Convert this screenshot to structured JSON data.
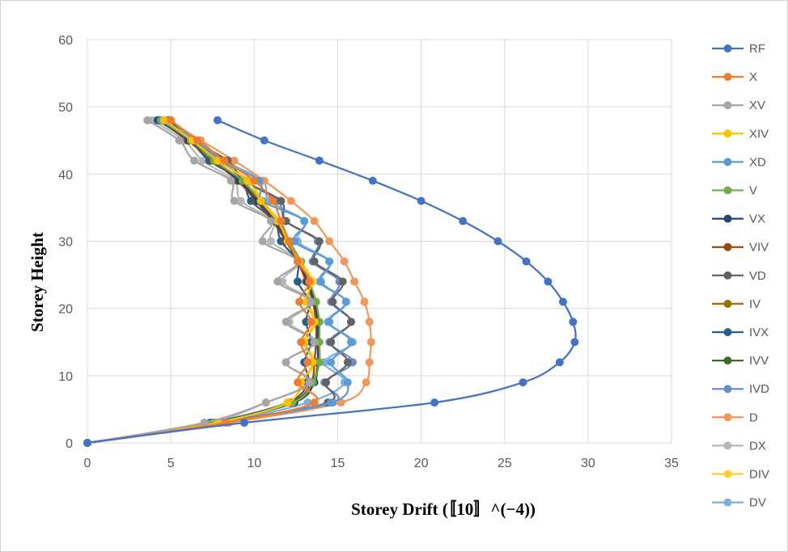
{
  "chart_data": {
    "type": "line",
    "title": "",
    "xlabel": "Storey Drift (〚10〛^(−4))",
    "ylabel": "Storey Height",
    "xlim": [
      0,
      35
    ],
    "ylim": [
      0,
      60
    ],
    "x_ticks": [
      "0",
      "5",
      "10",
      "15",
      "20",
      "25",
      "30",
      "35"
    ],
    "y_ticks": [
      "0",
      "10",
      "20",
      "30",
      "40",
      "50",
      "60"
    ],
    "grid": true,
    "legend_position": "right",
    "series": [
      {
        "name": "RF",
        "color": "#4472C4",
        "points": [
          [
            0,
            0
          ],
          [
            9.4,
            3
          ],
          [
            20.8,
            6
          ],
          [
            26.1,
            9
          ],
          [
            28.3,
            12
          ],
          [
            29.2,
            15
          ],
          [
            29.1,
            18
          ],
          [
            28.5,
            21
          ],
          [
            27.6,
            24
          ],
          [
            26.3,
            27
          ],
          [
            24.6,
            30
          ],
          [
            22.5,
            33
          ],
          [
            20.0,
            36
          ],
          [
            17.1,
            39
          ],
          [
            13.9,
            42
          ],
          [
            10.6,
            45
          ],
          [
            7.8,
            48
          ]
        ]
      },
      {
        "name": "X",
        "color": "#ED7D31",
        "points": [
          [
            0,
            0
          ],
          [
            8.3,
            3
          ],
          [
            13.6,
            6
          ],
          [
            12.6,
            9
          ],
          [
            13.2,
            12
          ],
          [
            12.8,
            15
          ],
          [
            13.4,
            18
          ],
          [
            12.7,
            21
          ],
          [
            13.3,
            24
          ],
          [
            12.6,
            27
          ],
          [
            12.1,
            30
          ],
          [
            11.6,
            33
          ],
          [
            11.1,
            36
          ],
          [
            10.0,
            39
          ],
          [
            8.2,
            42
          ],
          [
            6.6,
            45
          ],
          [
            5.0,
            48
          ]
        ]
      },
      {
        "name": "XV",
        "color": "#A5A5A5",
        "points": [
          [
            0,
            0
          ],
          [
            7.0,
            3
          ],
          [
            10.7,
            6
          ],
          [
            13.3,
            9
          ],
          [
            11.9,
            12
          ],
          [
            13.6,
            15
          ],
          [
            11.9,
            18
          ],
          [
            13.4,
            21
          ],
          [
            11.4,
            24
          ],
          [
            12.6,
            27
          ],
          [
            10.5,
            30
          ],
          [
            11.0,
            33
          ],
          [
            8.8,
            36
          ],
          [
            8.6,
            39
          ],
          [
            6.4,
            42
          ],
          [
            5.5,
            45
          ],
          [
            3.6,
            48
          ]
        ]
      },
      {
        "name": "XIV",
        "color": "#FFC000",
        "points": [
          [
            0,
            0
          ],
          [
            7.8,
            3
          ],
          [
            12.0,
            6
          ],
          [
            12.8,
            9
          ],
          [
            13.5,
            12
          ],
          [
            13.0,
            15
          ],
          [
            13.6,
            18
          ],
          [
            13.1,
            21
          ],
          [
            13.4,
            24
          ],
          [
            12.7,
            27
          ],
          [
            12.0,
            30
          ],
          [
            11.4,
            33
          ],
          [
            10.4,
            36
          ],
          [
            9.6,
            39
          ],
          [
            7.8,
            42
          ],
          [
            6.3,
            45
          ],
          [
            4.6,
            48
          ]
        ]
      },
      {
        "name": "XD",
        "color": "#5B9BD5",
        "points": [
          [
            0,
            0
          ],
          [
            8.0,
            3
          ],
          [
            14.6,
            6
          ],
          [
            15.6,
            9
          ],
          [
            14.6,
            12
          ],
          [
            15.8,
            15
          ],
          [
            14.5,
            18
          ],
          [
            15.5,
            21
          ],
          [
            14.0,
            24
          ],
          [
            14.5,
            27
          ],
          [
            12.4,
            30
          ],
          [
            13.0,
            33
          ],
          [
            10.5,
            36
          ],
          [
            10.3,
            39
          ],
          [
            7.9,
            42
          ],
          [
            6.5,
            45
          ],
          [
            4.5,
            48
          ]
        ]
      },
      {
        "name": "V",
        "color": "#70AD47",
        "points": [
          [
            0,
            0
          ],
          [
            7.6,
            3
          ],
          [
            12.3,
            6
          ],
          [
            13.5,
            9
          ],
          [
            13.9,
            12
          ],
          [
            13.9,
            15
          ],
          [
            13.9,
            18
          ],
          [
            13.7,
            21
          ],
          [
            13.3,
            24
          ],
          [
            12.8,
            27
          ],
          [
            12.1,
            30
          ],
          [
            11.4,
            33
          ],
          [
            10.4,
            36
          ],
          [
            9.3,
            39
          ],
          [
            7.6,
            42
          ],
          [
            6.2,
            45
          ],
          [
            4.4,
            48
          ]
        ]
      },
      {
        "name": "VX",
        "color": "#264478",
        "points": [
          [
            0,
            0
          ],
          [
            7.6,
            3
          ],
          [
            12.4,
            6
          ],
          [
            13.6,
            9
          ],
          [
            13.8,
            12
          ],
          [
            13.8,
            15
          ],
          [
            13.8,
            18
          ],
          [
            13.6,
            21
          ],
          [
            13.2,
            24
          ],
          [
            12.7,
            27
          ],
          [
            12.0,
            30
          ],
          [
            11.2,
            33
          ],
          [
            10.2,
            36
          ],
          [
            9.1,
            39
          ],
          [
            7.6,
            42
          ],
          [
            6.1,
            45
          ],
          [
            4.3,
            48
          ]
        ]
      },
      {
        "name": "VIV",
        "color": "#9E480E",
        "points": [
          [
            0,
            0
          ],
          [
            7.6,
            3
          ],
          [
            12.2,
            6
          ],
          [
            13.4,
            9
          ],
          [
            13.6,
            12
          ],
          [
            13.7,
            15
          ],
          [
            13.7,
            18
          ],
          [
            13.5,
            21
          ],
          [
            13.1,
            24
          ],
          [
            12.6,
            27
          ],
          [
            11.9,
            30
          ],
          [
            11.1,
            33
          ],
          [
            10.1,
            36
          ],
          [
            9.0,
            39
          ],
          [
            7.5,
            42
          ],
          [
            6.0,
            45
          ],
          [
            4.3,
            48
          ]
        ]
      },
      {
        "name": "VD",
        "color": "#636363",
        "points": [
          [
            0,
            0
          ],
          [
            7.8,
            3
          ],
          [
            14.4,
            6
          ],
          [
            14.3,
            9
          ],
          [
            15.6,
            12
          ],
          [
            14.6,
            15
          ],
          [
            15.8,
            18
          ],
          [
            14.7,
            21
          ],
          [
            15.3,
            24
          ],
          [
            13.6,
            27
          ],
          [
            13.9,
            30
          ],
          [
            11.9,
            33
          ],
          [
            11.6,
            36
          ],
          [
            9.4,
            39
          ],
          [
            8.4,
            42
          ],
          [
            6.3,
            45
          ],
          [
            4.9,
            48
          ]
        ]
      },
      {
        "name": "IV",
        "color": "#997300",
        "points": [
          [
            0,
            0
          ],
          [
            7.6,
            3
          ],
          [
            12.3,
            6
          ],
          [
            13.5,
            9
          ],
          [
            13.8,
            12
          ],
          [
            13.8,
            15
          ],
          [
            13.8,
            18
          ],
          [
            13.6,
            21
          ],
          [
            13.2,
            24
          ],
          [
            12.7,
            27
          ],
          [
            12.0,
            30
          ],
          [
            11.3,
            33
          ],
          [
            10.3,
            36
          ],
          [
            9.2,
            39
          ],
          [
            7.6,
            42
          ],
          [
            6.1,
            45
          ],
          [
            4.3,
            48
          ]
        ]
      },
      {
        "name": "IVX",
        "color": "#255E91",
        "points": [
          [
            0,
            0
          ],
          [
            7.4,
            3
          ],
          [
            12.0,
            6
          ],
          [
            13.2,
            9
          ],
          [
            13.0,
            12
          ],
          [
            13.4,
            15
          ],
          [
            13.1,
            18
          ],
          [
            13.3,
            21
          ],
          [
            12.6,
            24
          ],
          [
            12.6,
            27
          ],
          [
            11.6,
            30
          ],
          [
            11.2,
            33
          ],
          [
            9.8,
            36
          ],
          [
            9.2,
            39
          ],
          [
            7.3,
            42
          ],
          [
            6.1,
            45
          ],
          [
            4.2,
            48
          ]
        ]
      },
      {
        "name": "IVV",
        "color": "#43682B",
        "points": [
          [
            0,
            0
          ],
          [
            7.6,
            3
          ],
          [
            12.3,
            6
          ],
          [
            13.5,
            9
          ],
          [
            13.8,
            12
          ],
          [
            13.8,
            15
          ],
          [
            13.8,
            18
          ],
          [
            13.6,
            21
          ],
          [
            13.2,
            24
          ],
          [
            12.7,
            27
          ],
          [
            12.1,
            30
          ],
          [
            11.3,
            33
          ],
          [
            10.3,
            36
          ],
          [
            9.2,
            39
          ],
          [
            7.6,
            42
          ],
          [
            6.1,
            45
          ],
          [
            4.3,
            48
          ]
        ]
      },
      {
        "name": "IVD",
        "color": "#698ED0",
        "points": [
          [
            0,
            0
          ],
          [
            7.8,
            3
          ],
          [
            14.7,
            6
          ],
          [
            14.2,
            9
          ],
          [
            15.9,
            12
          ],
          [
            14.5,
            15
          ],
          [
            15.8,
            18
          ],
          [
            14.6,
            21
          ],
          [
            15.1,
            24
          ],
          [
            13.5,
            27
          ],
          [
            13.8,
            30
          ],
          [
            11.9,
            33
          ],
          [
            11.4,
            36
          ],
          [
            9.4,
            39
          ],
          [
            8.1,
            42
          ],
          [
            6.3,
            45
          ],
          [
            4.6,
            48
          ]
        ]
      },
      {
        "name": "D",
        "color": "#F1975A",
        "points": [
          [
            0,
            0
          ],
          [
            8.5,
            3
          ],
          [
            15.2,
            6
          ],
          [
            16.7,
            9
          ],
          [
            16.9,
            12
          ],
          [
            17.0,
            15
          ],
          [
            16.9,
            18
          ],
          [
            16.6,
            21
          ],
          [
            16.0,
            24
          ],
          [
            15.4,
            27
          ],
          [
            14.5,
            30
          ],
          [
            13.6,
            33
          ],
          [
            12.2,
            36
          ],
          [
            10.6,
            39
          ],
          [
            8.8,
            42
          ],
          [
            6.8,
            45
          ],
          [
            4.8,
            48
          ]
        ]
      },
      {
        "name": "DX",
        "color": "#B7B7B7",
        "points": [
          [
            0,
            0
          ],
          [
            7.3,
            3
          ],
          [
            10.7,
            6
          ],
          [
            13.4,
            9
          ],
          [
            11.9,
            12
          ],
          [
            13.7,
            15
          ],
          [
            12.1,
            18
          ],
          [
            13.5,
            21
          ],
          [
            11.7,
            24
          ],
          [
            12.7,
            27
          ],
          [
            11.0,
            30
          ],
          [
            11.1,
            33
          ],
          [
            9.2,
            36
          ],
          [
            8.8,
            39
          ],
          [
            6.9,
            42
          ],
          [
            5.8,
            45
          ],
          [
            3.9,
            48
          ]
        ]
      },
      {
        "name": "DIV",
        "color": "#FFCD33",
        "points": [
          [
            0,
            0
          ],
          [
            7.7,
            3
          ],
          [
            12.1,
            6
          ],
          [
            12.9,
            9
          ],
          [
            13.6,
            12
          ],
          [
            13.1,
            15
          ],
          [
            13.7,
            18
          ],
          [
            13.2,
            21
          ],
          [
            13.5,
            24
          ],
          [
            12.8,
            27
          ],
          [
            12.1,
            30
          ],
          [
            11.5,
            33
          ],
          [
            10.5,
            36
          ],
          [
            9.7,
            39
          ],
          [
            7.9,
            42
          ],
          [
            6.4,
            45
          ],
          [
            4.6,
            48
          ]
        ]
      },
      {
        "name": "DV",
        "color": "#7CAFDD",
        "points": [
          [
            0,
            0
          ],
          [
            7.9,
            3
          ],
          [
            13.2,
            6
          ],
          [
            15.4,
            9
          ],
          [
            14.2,
            12
          ],
          [
            15.9,
            15
          ],
          [
            14.4,
            18
          ],
          [
            15.5,
            21
          ],
          [
            13.9,
            24
          ],
          [
            14.5,
            27
          ],
          [
            12.6,
            30
          ],
          [
            13.0,
            33
          ],
          [
            10.9,
            36
          ],
          [
            10.5,
            39
          ],
          [
            8.2,
            42
          ],
          [
            6.7,
            45
          ],
          [
            4.6,
            48
          ]
        ]
      }
    ]
  }
}
